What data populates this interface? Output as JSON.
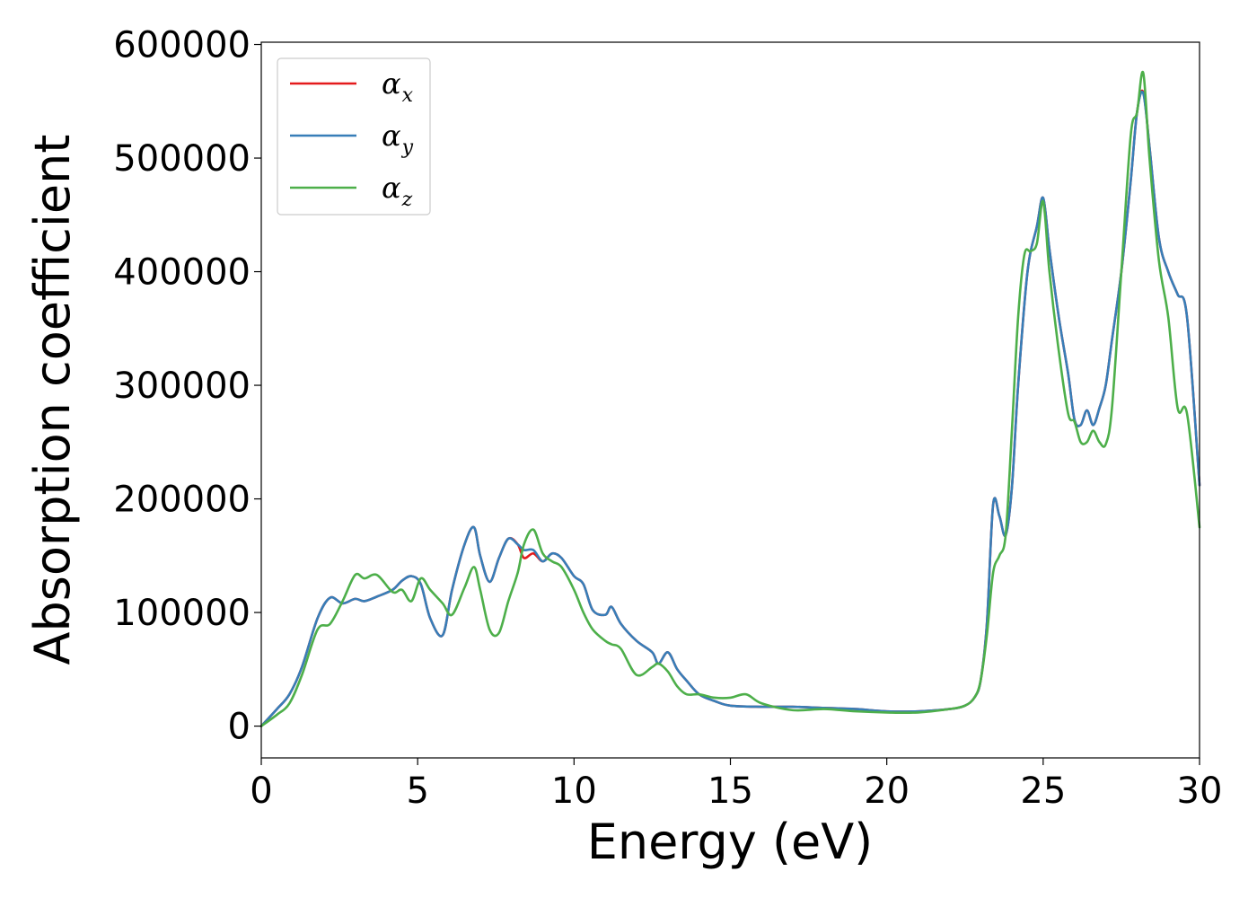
{
  "chart_data": {
    "type": "line",
    "xlabel": "Energy (eV)",
    "ylabel": "Absorption coefficient",
    "xlim": [
      0,
      30
    ],
    "ylim": [
      -28000,
      602000
    ],
    "x_ticks": [
      0,
      5,
      10,
      15,
      20,
      25,
      30
    ],
    "x_tick_labels": [
      "0",
      "5",
      "10",
      "15",
      "20",
      "25",
      "30"
    ],
    "y_ticks": [
      0,
      100000,
      200000,
      300000,
      400000,
      500000,
      600000
    ],
    "y_tick_labels": [
      "0",
      "100000",
      "200000",
      "300000",
      "400000",
      "500000",
      "600000"
    ],
    "grid": false,
    "legend_position": "top-left",
    "series": [
      {
        "name": "α",
        "subscript": "x",
        "color": "#e41a1c",
        "x": [
          0,
          0.5,
          0.9,
          1.3,
          1.8,
          2.2,
          2.6,
          3.0,
          3.3,
          3.7,
          4.2,
          4.5,
          4.8,
          5.1,
          5.4,
          5.8,
          6.1,
          6.5,
          6.8,
          7.0,
          7.3,
          7.6,
          7.9,
          8.2,
          8.4,
          8.7,
          9.0,
          9.3,
          9.6,
          10.0,
          10.3,
          10.6,
          11.0,
          11.2,
          11.5,
          12.0,
          12.5,
          12.7,
          13.0,
          13.3,
          13.6,
          14.0,
          14.5,
          15.0,
          16.0,
          17.0,
          18.0,
          19.0,
          20.0,
          21.0,
          22.0,
          22.5,
          22.8,
          23.0,
          23.2,
          23.4,
          23.6,
          23.8,
          24.0,
          24.2,
          24.5,
          24.8,
          25.0,
          25.2,
          25.5,
          25.8,
          26.0,
          26.2,
          26.4,
          26.6,
          26.8,
          27.0,
          27.2,
          27.5,
          27.8,
          28.0,
          28.2,
          28.4,
          28.7,
          29.0,
          29.3,
          29.6,
          30.0
        ],
        "values": [
          0,
          15000,
          28000,
          52000,
          95000,
          113000,
          108000,
          112000,
          110000,
          114000,
          120000,
          128000,
          132000,
          125000,
          95000,
          80000,
          120000,
          160000,
          175000,
          150000,
          127000,
          148000,
          165000,
          160000,
          148000,
          152000,
          145000,
          152000,
          148000,
          132000,
          125000,
          102000,
          98000,
          105000,
          90000,
          75000,
          65000,
          55000,
          65000,
          50000,
          40000,
          28000,
          22000,
          18000,
          17000,
          17000,
          16000,
          15000,
          13000,
          13000,
          15000,
          18000,
          25000,
          40000,
          90000,
          195000,
          185000,
          168000,
          210000,
          300000,
          400000,
          440000,
          465000,
          420000,
          360000,
          310000,
          270000,
          265000,
          278000,
          265000,
          280000,
          300000,
          340000,
          400000,
          480000,
          540000,
          558000,
          510000,
          430000,
          400000,
          380000,
          360000,
          212000
        ]
      },
      {
        "name": "α",
        "subscript": "y",
        "color": "#377eb8",
        "x": [
          0,
          0.5,
          0.9,
          1.3,
          1.8,
          2.2,
          2.6,
          3.0,
          3.3,
          3.7,
          4.2,
          4.5,
          4.8,
          5.1,
          5.4,
          5.8,
          6.1,
          6.5,
          6.8,
          7.0,
          7.3,
          7.6,
          7.9,
          8.2,
          8.4,
          8.7,
          9.0,
          9.3,
          9.6,
          10.0,
          10.3,
          10.6,
          11.0,
          11.2,
          11.5,
          12.0,
          12.5,
          12.7,
          13.0,
          13.3,
          13.6,
          14.0,
          14.5,
          15.0,
          16.0,
          17.0,
          18.0,
          19.0,
          20.0,
          21.0,
          22.0,
          22.5,
          22.8,
          23.0,
          23.2,
          23.4,
          23.6,
          23.8,
          24.0,
          24.2,
          24.5,
          24.8,
          25.0,
          25.2,
          25.5,
          25.8,
          26.0,
          26.2,
          26.4,
          26.6,
          26.8,
          27.0,
          27.2,
          27.5,
          27.8,
          28.0,
          28.2,
          28.4,
          28.7,
          29.0,
          29.3,
          29.6,
          30.0
        ],
        "values": [
          0,
          15000,
          28000,
          52000,
          95000,
          113000,
          108000,
          112000,
          110000,
          114000,
          120000,
          128000,
          132000,
          125000,
          95000,
          80000,
          120000,
          160000,
          175000,
          150000,
          127000,
          148000,
          165000,
          160000,
          155000,
          155000,
          145000,
          152000,
          148000,
          132000,
          125000,
          102000,
          98000,
          105000,
          90000,
          75000,
          65000,
          55000,
          65000,
          50000,
          40000,
          28000,
          22000,
          18000,
          17000,
          17000,
          16000,
          15000,
          13000,
          13000,
          15000,
          18000,
          25000,
          40000,
          90000,
          195000,
          185000,
          168000,
          210000,
          300000,
          400000,
          440000,
          465000,
          420000,
          360000,
          310000,
          270000,
          265000,
          278000,
          265000,
          280000,
          300000,
          340000,
          400000,
          480000,
          540000,
          557000,
          510000,
          430000,
          400000,
          380000,
          360000,
          212000
        ]
      },
      {
        "name": "α",
        "subscript": "z",
        "color": "#4daf4a",
        "x": [
          0,
          0.5,
          0.9,
          1.3,
          1.8,
          2.2,
          2.6,
          3.0,
          3.3,
          3.7,
          4.2,
          4.5,
          4.8,
          5.1,
          5.4,
          5.8,
          6.1,
          6.5,
          6.8,
          7.0,
          7.3,
          7.6,
          7.9,
          8.2,
          8.4,
          8.7,
          9.0,
          9.3,
          9.6,
          10.0,
          10.3,
          10.6,
          11.0,
          11.2,
          11.5,
          12.0,
          12.5,
          12.7,
          13.0,
          13.3,
          13.6,
          14.0,
          14.5,
          15.0,
          15.5,
          16.0,
          17.0,
          18.0,
          19.0,
          20.0,
          21.0,
          22.0,
          22.5,
          22.8,
          23.0,
          23.2,
          23.4,
          23.6,
          23.8,
          24.0,
          24.2,
          24.4,
          24.6,
          24.8,
          25.0,
          25.2,
          25.5,
          25.8,
          26.0,
          26.2,
          26.4,
          26.6,
          26.8,
          27.0,
          27.2,
          27.5,
          27.8,
          28.0,
          28.2,
          28.4,
          28.7,
          29.0,
          29.3,
          29.6,
          30.0
        ],
        "values": [
          0,
          10000,
          20000,
          45000,
          85000,
          90000,
          110000,
          133000,
          130000,
          133000,
          118000,
          120000,
          110000,
          130000,
          120000,
          108000,
          98000,
          122000,
          140000,
          120000,
          85000,
          82000,
          110000,
          135000,
          160000,
          173000,
          152000,
          145000,
          140000,
          120000,
          100000,
          85000,
          75000,
          72000,
          68000,
          45000,
          52000,
          55000,
          48000,
          35000,
          28000,
          28000,
          25000,
          25000,
          28000,
          20000,
          14000,
          15000,
          13000,
          12000,
          12000,
          15000,
          18000,
          25000,
          40000,
          80000,
          135000,
          150000,
          168000,
          260000,
          360000,
          415000,
          418000,
          425000,
          462000,
          400000,
          330000,
          275000,
          268000,
          250000,
          250000,
          260000,
          250000,
          248000,
          280000,
          400000,
          520000,
          540000,
          575000,
          500000,
          410000,
          360000,
          280000,
          275000,
          175000
        ]
      }
    ]
  }
}
